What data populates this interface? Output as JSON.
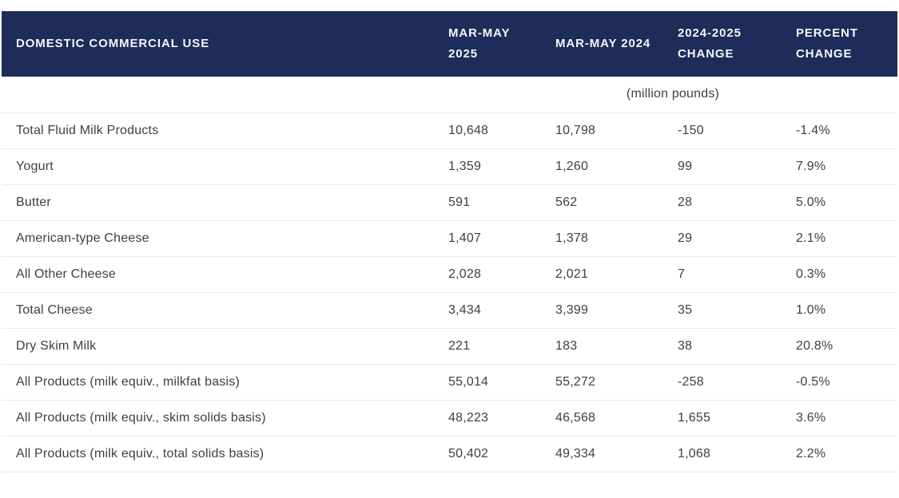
{
  "colors": {
    "header_bg": "#1d2c58",
    "header_text": "#f4f6f9",
    "body_text": "#3e3f41",
    "divider": "#e6e8ea",
    "page_bg": "#ffffff"
  },
  "table": {
    "title": "DOMESTIC COMMERCIAL USE",
    "columns": [
      "MAR-MAY 2025",
      "MAR-MAY 2024",
      "2024-2025 CHANGE",
      "PERCENT CHANGE"
    ],
    "unit_note": "(million pounds)",
    "rows": [
      [
        "Total Fluid Milk Products",
        "10,648",
        "10,798",
        "-150",
        "-1.4%"
      ],
      [
        "Yogurt",
        "1,359",
        "1,260",
        "99",
        "7.9%"
      ],
      [
        "Butter",
        "591",
        "562",
        "28",
        "5.0%"
      ],
      [
        "American-type Cheese",
        "1,407",
        "1,378",
        "29",
        "2.1%"
      ],
      [
        "All Other Cheese",
        "2,028",
        "2,021",
        "7",
        "0.3%"
      ],
      [
        "Total Cheese",
        "3,434",
        "3,399",
        "35",
        "1.0%"
      ],
      [
        "Dry Skim Milk",
        "221",
        "183",
        "38",
        "20.8%"
      ],
      [
        "All Products (milk equiv., milkfat basis)",
        "55,014",
        "55,272",
        "-258",
        "-0.5%"
      ],
      [
        "All Products (milk equiv., skim solids basis)",
        "48,223",
        "46,568",
        "1,655",
        "3.6%"
      ],
      [
        "All Products (milk equiv., total solids basis)",
        "50,402",
        "49,334",
        "1,068",
        "2.2%"
      ]
    ]
  },
  "chart_data": {
    "type": "table",
    "title": "Domestic Commercial Use",
    "unit": "million pounds",
    "columns": [
      "Domestic Commercial Use",
      "Mar-May 2025",
      "Mar-May 2024",
      "2024-2025 Change",
      "Percent Change"
    ],
    "rows": [
      {
        "label": "Total Fluid Milk Products",
        "mar_may_2025": 10648,
        "mar_may_2024": 10798,
        "change": -150,
        "percent_change": -1.4
      },
      {
        "label": "Yogurt",
        "mar_may_2025": 1359,
        "mar_may_2024": 1260,
        "change": 99,
        "percent_change": 7.9
      },
      {
        "label": "Butter",
        "mar_may_2025": 591,
        "mar_may_2024": 562,
        "change": 28,
        "percent_change": 5.0
      },
      {
        "label": "American-type Cheese",
        "mar_may_2025": 1407,
        "mar_may_2024": 1378,
        "change": 29,
        "percent_change": 2.1
      },
      {
        "label": "All Other Cheese",
        "mar_may_2025": 2028,
        "mar_may_2024": 2021,
        "change": 7,
        "percent_change": 0.3
      },
      {
        "label": "Total Cheese",
        "mar_may_2025": 3434,
        "mar_may_2024": 3399,
        "change": 35,
        "percent_change": 1.0
      },
      {
        "label": "Dry Skim Milk",
        "mar_may_2025": 221,
        "mar_may_2024": 183,
        "change": 38,
        "percent_change": 20.8
      },
      {
        "label": "All Products (milk equiv., milkfat basis)",
        "mar_may_2025": 55014,
        "mar_may_2024": 55272,
        "change": -258,
        "percent_change": -0.5
      },
      {
        "label": "All Products (milk equiv., skim solids basis)",
        "mar_may_2025": 48223,
        "mar_may_2024": 46568,
        "change": 1655,
        "percent_change": 3.6
      },
      {
        "label": "All Products (milk equiv., total solids basis)",
        "mar_may_2025": 50402,
        "mar_may_2024": 49334,
        "change": 1068,
        "percent_change": 2.2
      }
    ]
  }
}
